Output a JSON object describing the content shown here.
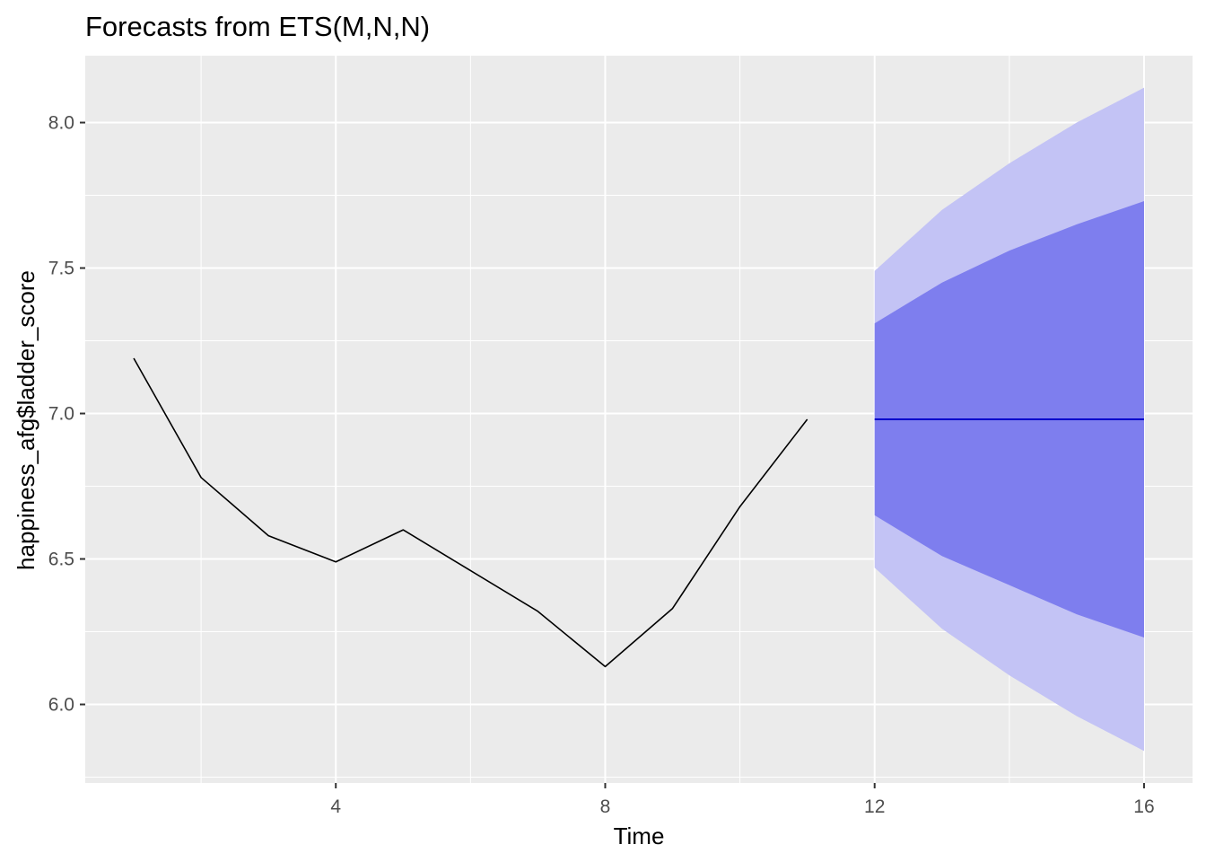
{
  "chart_data": {
    "type": "line",
    "title": "Forecasts from ETS(M,N,N)",
    "xlabel": "Time",
    "ylabel": "happiness_afg$ladder_score",
    "xlim": [
      0.28,
      16.72
    ],
    "ylim": [
      5.73,
      8.23
    ],
    "x_ticks": [
      4,
      8,
      12,
      16
    ],
    "y_ticks": [
      6.0,
      6.5,
      7.0,
      7.5,
      8.0
    ],
    "x_tick_labels": [
      "4",
      "8",
      "12",
      "16"
    ],
    "y_tick_labels": [
      "6.0",
      "6.5",
      "7.0",
      "7.5",
      "8.0"
    ],
    "grid": true,
    "legend": "none",
    "colors": {
      "panel": "#ebebeb",
      "grid": "#ffffff",
      "observed": "#000000",
      "forecast": "#0000cc",
      "interval_80": "#7e7eee",
      "interval_95": "#c3c3f5"
    },
    "observed": {
      "x": [
        1,
        2,
        3,
        4,
        5,
        6,
        7,
        8,
        9,
        10,
        11
      ],
      "y": [
        7.19,
        6.78,
        6.58,
        6.49,
        6.6,
        6.46,
        6.32,
        6.13,
        6.33,
        6.68,
        6.98
      ]
    },
    "forecast": {
      "x": [
        12,
        13,
        14,
        15,
        16
      ],
      "mean": [
        6.98,
        6.98,
        6.98,
        6.98,
        6.98
      ],
      "lo80": [
        6.65,
        6.51,
        6.41,
        6.31,
        6.23
      ],
      "hi80": [
        7.31,
        7.45,
        7.56,
        7.65,
        7.73
      ],
      "lo95": [
        6.47,
        6.26,
        6.1,
        5.96,
        5.84
      ],
      "hi95": [
        7.49,
        7.7,
        7.86,
        8.0,
        8.12
      ]
    }
  }
}
